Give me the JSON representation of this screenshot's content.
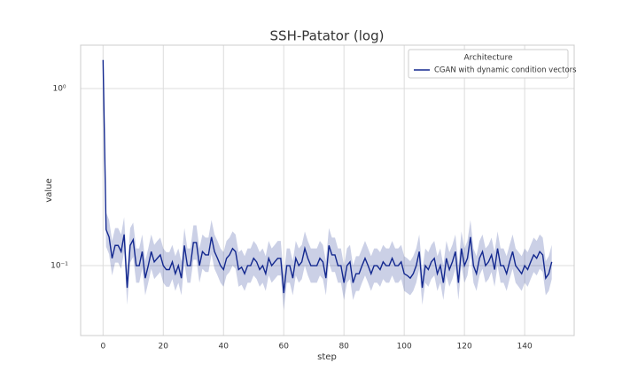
{
  "chart_data": {
    "type": "line",
    "title": "SSH-Patator (log)",
    "xlabel": "step",
    "ylabel": "value",
    "yscale": "log",
    "grid": true,
    "legend_title": "Architecture",
    "legend_loc": "upper right",
    "xlim": [
      -7.45,
      156.45
    ],
    "xticks": [
      0,
      20,
      40,
      60,
      80,
      100,
      120,
      140
    ],
    "ylim": [
      0.0403,
      1.758
    ],
    "yticks": [
      {
        "value": 1,
        "label": "10⁰"
      },
      {
        "value": 0.1,
        "label": "10⁻¹"
      }
    ],
    "x": [
      0,
      1,
      2,
      3,
      4,
      5,
      6,
      7,
      8,
      9,
      10,
      11,
      12,
      13,
      14,
      15,
      16,
      17,
      18,
      19,
      20,
      21,
      22,
      23,
      24,
      25,
      26,
      27,
      28,
      29,
      30,
      31,
      32,
      33,
      34,
      35,
      36,
      37,
      38,
      39,
      40,
      41,
      42,
      43,
      44,
      45,
      46,
      47,
      48,
      49,
      50,
      51,
      52,
      53,
      54,
      55,
      56,
      57,
      58,
      59,
      60,
      61,
      62,
      63,
      64,
      65,
      66,
      67,
      68,
      69,
      70,
      71,
      72,
      73,
      74,
      75,
      76,
      77,
      78,
      79,
      80,
      81,
      82,
      83,
      84,
      85,
      86,
      87,
      88,
      89,
      90,
      91,
      92,
      93,
      94,
      95,
      96,
      97,
      98,
      99,
      100,
      101,
      102,
      103,
      104,
      105,
      106,
      107,
      108,
      109,
      110,
      111,
      112,
      113,
      114,
      115,
      116,
      117,
      118,
      119,
      120,
      121,
      122,
      123,
      124,
      125,
      126,
      127,
      128,
      129,
      130,
      131,
      132,
      133,
      134,
      135,
      136,
      137,
      138,
      139,
      140,
      141,
      142,
      143,
      144,
      145,
      146,
      147,
      148,
      149
    ],
    "series": [
      {
        "name": "CGAN with dynamic condition vectors",
        "color": "#13288f",
        "values": [
          1.45,
          0.16,
          0.145,
          0.11,
          0.13,
          0.13,
          0.12,
          0.15,
          0.075,
          0.13,
          0.14,
          0.1,
          0.1,
          0.12,
          0.085,
          0.1,
          0.12,
          0.105,
          0.11,
          0.115,
          0.1,
          0.095,
          0.095,
          0.105,
          0.09,
          0.1,
          0.085,
          0.13,
          0.1,
          0.1,
          0.135,
          0.135,
          0.1,
          0.12,
          0.115,
          0.115,
          0.145,
          0.12,
          0.11,
          0.1,
          0.095,
          0.11,
          0.115,
          0.125,
          0.12,
          0.095,
          0.098,
          0.09,
          0.1,
          0.1,
          0.11,
          0.105,
          0.095,
          0.1,
          0.09,
          0.11,
          0.1,
          0.105,
          0.11,
          0.11,
          0.07,
          0.1,
          0.1,
          0.085,
          0.11,
          0.1,
          0.105,
          0.125,
          0.11,
          0.1,
          0.1,
          0.1,
          0.11,
          0.105,
          0.085,
          0.13,
          0.115,
          0.115,
          0.1,
          0.1,
          0.08,
          0.1,
          0.105,
          0.08,
          0.09,
          0.09,
          0.1,
          0.11,
          0.1,
          0.09,
          0.1,
          0.1,
          0.095,
          0.105,
          0.1,
          0.1,
          0.11,
          0.1,
          0.1,
          0.105,
          0.09,
          0.088,
          0.085,
          0.09,
          0.1,
          0.12,
          0.075,
          0.1,
          0.095,
          0.105,
          0.11,
          0.09,
          0.1,
          0.08,
          0.11,
          0.095,
          0.105,
          0.12,
          0.08,
          0.125,
          0.1,
          0.11,
          0.145,
          0.1,
          0.09,
          0.11,
          0.12,
          0.1,
          0.105,
          0.115,
          0.095,
          0.125,
          0.1,
          0.1,
          0.09,
          0.105,
          0.12,
          0.1,
          0.095,
          0.09,
          0.1,
          0.095,
          0.105,
          0.115,
          0.11,
          0.12,
          0.115,
          0.085,
          0.09,
          0.105
        ],
        "lower": [
          1.4,
          0.128,
          0.116,
          0.088,
          0.104,
          0.104,
          0.096,
          0.12,
          0.06,
          0.104,
          0.112,
          0.08,
          0.08,
          0.096,
          0.068,
          0.08,
          0.096,
          0.084,
          0.088,
          0.092,
          0.08,
          0.076,
          0.076,
          0.084,
          0.072,
          0.08,
          0.068,
          0.104,
          0.08,
          0.08,
          0.108,
          0.108,
          0.08,
          0.096,
          0.092,
          0.092,
          0.116,
          0.096,
          0.088,
          0.08,
          0.076,
          0.088,
          0.092,
          0.1,
          0.096,
          0.076,
          0.078,
          0.072,
          0.08,
          0.08,
          0.088,
          0.084,
          0.076,
          0.08,
          0.072,
          0.088,
          0.08,
          0.084,
          0.088,
          0.088,
          0.056,
          0.08,
          0.08,
          0.068,
          0.088,
          0.08,
          0.084,
          0.1,
          0.088,
          0.08,
          0.08,
          0.08,
          0.088,
          0.084,
          0.068,
          0.104,
          0.092,
          0.092,
          0.08,
          0.08,
          0.064,
          0.08,
          0.084,
          0.064,
          0.072,
          0.072,
          0.08,
          0.088,
          0.08,
          0.072,
          0.08,
          0.08,
          0.076,
          0.084,
          0.08,
          0.08,
          0.088,
          0.08,
          0.08,
          0.084,
          0.072,
          0.07,
          0.068,
          0.072,
          0.08,
          0.096,
          0.06,
          0.08,
          0.076,
          0.084,
          0.088,
          0.072,
          0.08,
          0.064,
          0.088,
          0.076,
          0.084,
          0.096,
          0.064,
          0.1,
          0.08,
          0.088,
          0.116,
          0.08,
          0.072,
          0.088,
          0.096,
          0.08,
          0.084,
          0.092,
          0.076,
          0.1,
          0.08,
          0.08,
          0.072,
          0.084,
          0.096,
          0.08,
          0.076,
          0.072,
          0.08,
          0.076,
          0.084,
          0.092,
          0.088,
          0.096,
          0.092,
          0.068,
          0.072,
          0.084
        ],
        "upper": [
          1.5,
          0.2,
          0.181,
          0.138,
          0.163,
          0.163,
          0.15,
          0.188,
          0.094,
          0.163,
          0.175,
          0.125,
          0.125,
          0.15,
          0.106,
          0.125,
          0.15,
          0.131,
          0.138,
          0.144,
          0.125,
          0.119,
          0.119,
          0.131,
          0.113,
          0.125,
          0.106,
          0.163,
          0.125,
          0.125,
          0.169,
          0.169,
          0.125,
          0.15,
          0.144,
          0.144,
          0.181,
          0.15,
          0.138,
          0.125,
          0.119,
          0.138,
          0.144,
          0.156,
          0.15,
          0.119,
          0.123,
          0.113,
          0.125,
          0.125,
          0.138,
          0.131,
          0.119,
          0.125,
          0.113,
          0.138,
          0.125,
          0.131,
          0.138,
          0.138,
          0.088,
          0.125,
          0.125,
          0.106,
          0.138,
          0.125,
          0.131,
          0.156,
          0.138,
          0.125,
          0.125,
          0.125,
          0.138,
          0.131,
          0.106,
          0.163,
          0.144,
          0.144,
          0.125,
          0.125,
          0.1,
          0.125,
          0.131,
          0.1,
          0.113,
          0.113,
          0.125,
          0.138,
          0.125,
          0.113,
          0.125,
          0.125,
          0.119,
          0.131,
          0.125,
          0.125,
          0.138,
          0.125,
          0.125,
          0.131,
          0.113,
          0.11,
          0.106,
          0.113,
          0.125,
          0.15,
          0.094,
          0.125,
          0.119,
          0.131,
          0.138,
          0.113,
          0.125,
          0.1,
          0.138,
          0.119,
          0.131,
          0.15,
          0.1,
          0.156,
          0.125,
          0.138,
          0.181,
          0.125,
          0.113,
          0.138,
          0.15,
          0.125,
          0.131,
          0.144,
          0.119,
          0.156,
          0.125,
          0.125,
          0.113,
          0.131,
          0.15,
          0.125,
          0.119,
          0.113,
          0.125,
          0.119,
          0.131,
          0.144,
          0.138,
          0.15,
          0.144,
          0.106,
          0.113,
          0.131
        ]
      }
    ]
  }
}
